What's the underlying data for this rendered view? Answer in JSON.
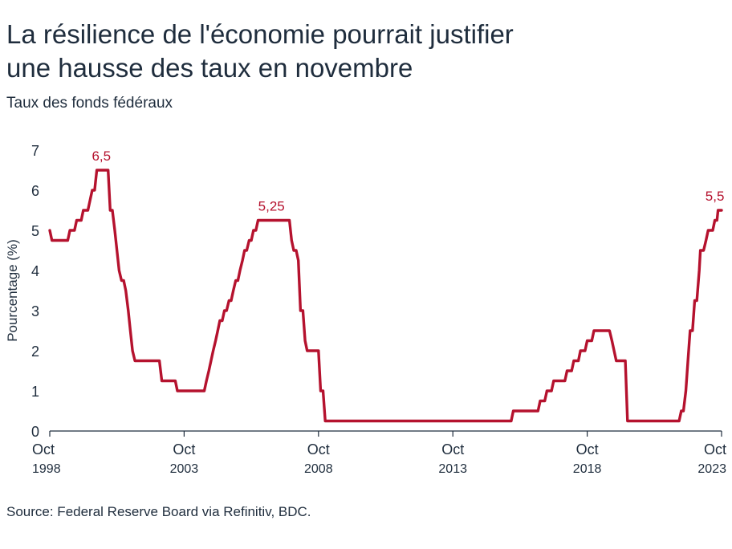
{
  "header": {
    "title_line1": "La résilience de l'économie pourrait justifier",
    "title_line2": "une hausse des taux en novembre",
    "subtitle": "Taux des fonds fédéraux"
  },
  "footer": {
    "source": "Source: Federal Reserve Board via Refinitiv, BDC."
  },
  "colors": {
    "series": "#b5122e",
    "text": "#1f2d3d",
    "axis": "#1f2d3d"
  },
  "chart_data": {
    "type": "line",
    "title": "La résilience de l'économie pourrait justifier une hausse des taux en novembre",
    "subtitle": "Taux des fonds fédéraux",
    "xlabel": "",
    "ylabel": "Pourcentage (%)",
    "ylim": [
      0,
      7
    ],
    "yticks": [
      "0",
      "1",
      "2",
      "3",
      "4",
      "5",
      "6",
      "7"
    ],
    "xlim": [
      1998.75,
      2023.75
    ],
    "xticks": [
      {
        "x": 1998.75,
        "line1": "Oct",
        "line2": "1998"
      },
      {
        "x": 2003.75,
        "line1": "Oct",
        "line2": "2003"
      },
      {
        "x": 2008.75,
        "line1": "Oct",
        "line2": "2008"
      },
      {
        "x": 2013.75,
        "line1": "Oct",
        "line2": "2013"
      },
      {
        "x": 2018.75,
        "line1": "Oct",
        "line2": "2018"
      },
      {
        "x": 2023.75,
        "line1": "Oct",
        "line2": "2023"
      }
    ],
    "grid": false,
    "series": [
      {
        "name": "",
        "points": [
          [
            1998.75,
            5.0
          ],
          [
            1998.83,
            4.75
          ],
          [
            1999.42,
            4.75
          ],
          [
            1999.5,
            5.0
          ],
          [
            1999.67,
            5.0
          ],
          [
            1999.75,
            5.25
          ],
          [
            1999.92,
            5.25
          ],
          [
            2000.0,
            5.5
          ],
          [
            2000.17,
            5.5
          ],
          [
            2000.25,
            5.75
          ],
          [
            2000.33,
            6.0
          ],
          [
            2000.42,
            6.0
          ],
          [
            2000.5,
            6.5
          ],
          [
            2000.92,
            6.5
          ],
          [
            2001.0,
            5.5
          ],
          [
            2001.08,
            5.5
          ],
          [
            2001.17,
            5.0
          ],
          [
            2001.25,
            4.5
          ],
          [
            2001.33,
            4.0
          ],
          [
            2001.42,
            3.75
          ],
          [
            2001.5,
            3.75
          ],
          [
            2001.58,
            3.5
          ],
          [
            2001.67,
            3.0
          ],
          [
            2001.75,
            2.5
          ],
          [
            2001.83,
            2.0
          ],
          [
            2001.92,
            1.75
          ],
          [
            2002.83,
            1.75
          ],
          [
            2002.92,
            1.25
          ],
          [
            2003.42,
            1.25
          ],
          [
            2003.5,
            1.0
          ],
          [
            2004.5,
            1.0
          ],
          [
            2004.58,
            1.25
          ],
          [
            2004.67,
            1.5
          ],
          [
            2004.75,
            1.75
          ],
          [
            2004.83,
            2.0
          ],
          [
            2004.92,
            2.25
          ],
          [
            2005.0,
            2.5
          ],
          [
            2005.08,
            2.75
          ],
          [
            2005.17,
            2.75
          ],
          [
            2005.25,
            3.0
          ],
          [
            2005.33,
            3.0
          ],
          [
            2005.42,
            3.25
          ],
          [
            2005.5,
            3.25
          ],
          [
            2005.58,
            3.5
          ],
          [
            2005.67,
            3.75
          ],
          [
            2005.75,
            3.75
          ],
          [
            2005.83,
            4.0
          ],
          [
            2005.92,
            4.25
          ],
          [
            2006.0,
            4.5
          ],
          [
            2006.08,
            4.5
          ],
          [
            2006.17,
            4.75
          ],
          [
            2006.25,
            4.75
          ],
          [
            2006.33,
            5.0
          ],
          [
            2006.42,
            5.0
          ],
          [
            2006.5,
            5.25
          ],
          [
            2007.67,
            5.25
          ],
          [
            2007.75,
            4.75
          ],
          [
            2007.83,
            4.5
          ],
          [
            2007.92,
            4.5
          ],
          [
            2008.0,
            4.25
          ],
          [
            2008.08,
            3.0
          ],
          [
            2008.17,
            3.0
          ],
          [
            2008.25,
            2.25
          ],
          [
            2008.33,
            2.0
          ],
          [
            2008.75,
            2.0
          ],
          [
            2008.83,
            1.0
          ],
          [
            2008.92,
            1.0
          ],
          [
            2009.0,
            0.25
          ],
          [
            2015.92,
            0.25
          ],
          [
            2016.0,
            0.5
          ],
          [
            2016.92,
            0.5
          ],
          [
            2017.0,
            0.75
          ],
          [
            2017.17,
            0.75
          ],
          [
            2017.25,
            1.0
          ],
          [
            2017.42,
            1.0
          ],
          [
            2017.5,
            1.25
          ],
          [
            2017.92,
            1.25
          ],
          [
            2018.0,
            1.5
          ],
          [
            2018.17,
            1.5
          ],
          [
            2018.25,
            1.75
          ],
          [
            2018.42,
            1.75
          ],
          [
            2018.5,
            2.0
          ],
          [
            2018.67,
            2.0
          ],
          [
            2018.75,
            2.25
          ],
          [
            2018.92,
            2.25
          ],
          [
            2019.0,
            2.5
          ],
          [
            2019.58,
            2.5
          ],
          [
            2019.67,
            2.25
          ],
          [
            2019.75,
            2.0
          ],
          [
            2019.83,
            1.75
          ],
          [
            2020.17,
            1.75
          ],
          [
            2020.25,
            0.25
          ],
          [
            2022.17,
            0.25
          ],
          [
            2022.25,
            0.5
          ],
          [
            2022.33,
            0.5
          ],
          [
            2022.42,
            1.0
          ],
          [
            2022.5,
            1.75
          ],
          [
            2022.58,
            2.5
          ],
          [
            2022.67,
            2.5
          ],
          [
            2022.75,
            3.25
          ],
          [
            2022.83,
            3.25
          ],
          [
            2022.92,
            4.0
          ],
          [
            2022.96,
            4.5
          ],
          [
            2023.08,
            4.5
          ],
          [
            2023.17,
            4.75
          ],
          [
            2023.25,
            5.0
          ],
          [
            2023.42,
            5.0
          ],
          [
            2023.5,
            5.25
          ],
          [
            2023.58,
            5.25
          ],
          [
            2023.62,
            5.5
          ],
          [
            2023.75,
            5.5
          ]
        ]
      }
    ],
    "annotations": [
      {
        "x": 2000.67,
        "y": 6.5,
        "text": "6,5"
      },
      {
        "x": 2007.0,
        "y": 5.25,
        "text": "5,25"
      },
      {
        "x": 2023.5,
        "y": 5.5,
        "text": "5,5"
      }
    ]
  }
}
